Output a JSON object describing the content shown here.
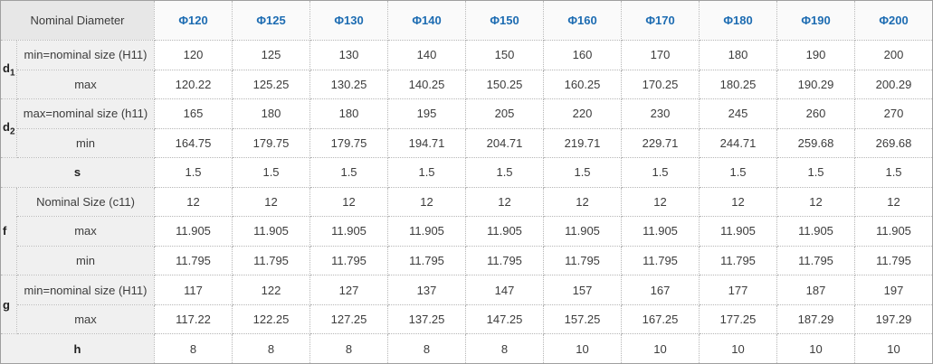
{
  "colors": {
    "header_blue": "#1d6cb2",
    "corner_bg": "#e7e7e7",
    "label_bg": "#f0f0f0",
    "column_head_bg": "#fafafa",
    "border_outer": "#9f9f9f",
    "border_inner_dotted": "#b6b6b6"
  },
  "table": {
    "corner_label": "Nominal Diameter",
    "columns": [
      "Φ120",
      "Φ125",
      "Φ130",
      "Φ140",
      "Φ150",
      "Φ160",
      "Φ170",
      "Φ180",
      "Φ190",
      "Φ200"
    ],
    "rows": [
      {
        "group": {
          "text": "d",
          "sub": "1",
          "rowspan": 2
        },
        "label": "min=nominal size  (H11)",
        "values": [
          "120",
          "125",
          "130",
          "140",
          "150",
          "160",
          "170",
          "180",
          "190",
          "200"
        ]
      },
      {
        "label": "max",
        "values": [
          "120.22",
          "125.25",
          "130.25",
          "140.25",
          "150.25",
          "160.25",
          "170.25",
          "180.25",
          "190.29",
          "200.29"
        ]
      },
      {
        "group": {
          "text": "d",
          "sub": "2",
          "rowspan": 2
        },
        "label": "max=nominal size  (h11)",
        "values": [
          "165",
          "180",
          "180",
          "195",
          "205",
          "220",
          "230",
          "245",
          "260",
          "270"
        ]
      },
      {
        "label": "min",
        "values": [
          "164.75",
          "179.75",
          "179.75",
          "194.71",
          "204.71",
          "219.71",
          "229.71",
          "244.71",
          "259.68",
          "269.68"
        ]
      },
      {
        "span_label": "s",
        "values": [
          "1.5",
          "1.5",
          "1.5",
          "1.5",
          "1.5",
          "1.5",
          "1.5",
          "1.5",
          "1.5",
          "1.5"
        ]
      },
      {
        "group": {
          "text": "f",
          "sub": "",
          "rowspan": 3
        },
        "label": "Nominal Size  (c11)",
        "values": [
          "12",
          "12",
          "12",
          "12",
          "12",
          "12",
          "12",
          "12",
          "12",
          "12"
        ]
      },
      {
        "label": "max",
        "values": [
          "11.905",
          "11.905",
          "11.905",
          "11.905",
          "11.905",
          "11.905",
          "11.905",
          "11.905",
          "11.905",
          "11.905"
        ]
      },
      {
        "label": "min",
        "values": [
          "11.795",
          "11.795",
          "11.795",
          "11.795",
          "11.795",
          "11.795",
          "11.795",
          "11.795",
          "11.795",
          "11.795"
        ]
      },
      {
        "group": {
          "text": "g",
          "sub": "",
          "rowspan": 2
        },
        "label": "min=nominal size  (H11)",
        "values": [
          "117",
          "122",
          "127",
          "137",
          "147",
          "157",
          "167",
          "177",
          "187",
          "197"
        ]
      },
      {
        "label": "max",
        "values": [
          "117.22",
          "122.25",
          "127.25",
          "137.25",
          "147.25",
          "157.25",
          "167.25",
          "177.25",
          "187.29",
          "197.29"
        ]
      },
      {
        "span_label": "h",
        "values": [
          "8",
          "8",
          "8",
          "8",
          "8",
          "10",
          "10",
          "10",
          "10",
          "10"
        ]
      }
    ]
  }
}
